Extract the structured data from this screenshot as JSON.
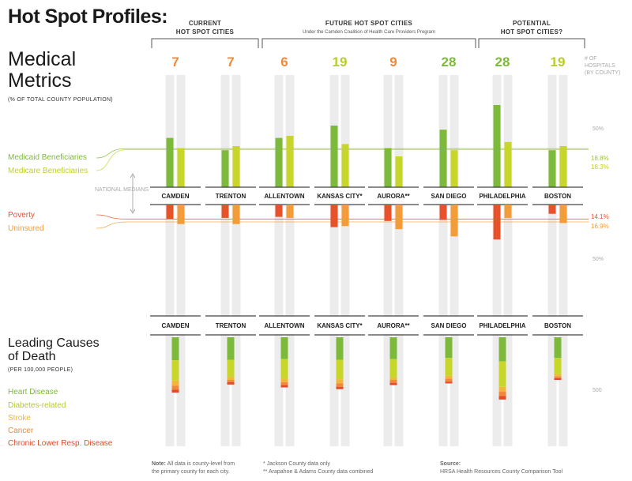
{
  "title": {
    "bold": "Hot Spot Profiles:",
    "line2": "Medical",
    "line3": "Metrics"
  },
  "subtitle": "(% OF TOTAL COUNTY POPULATION)",
  "groups": [
    {
      "label1": "CURRENT",
      "label2": "HOT SPOT CITIES",
      "sub": ""
    },
    {
      "label1": "FUTURE HOT SPOT CITIES",
      "label2": "",
      "sub": "Under the Camden Coalition of Health Care Providers Program"
    },
    {
      "label1": "POTENTIAL",
      "label2": "HOT SPOT CITIES?",
      "sub": ""
    }
  ],
  "hospitals_label": {
    "l1": "# OF",
    "l2": "HOSPITALS",
    "l3": "(BY COUNTY)"
  },
  "colors": {
    "medicaid": "#7dba3c",
    "medicare": "#c8d62a",
    "poverty": "#e8522b",
    "uninsured": "#f39c3a",
    "heart": "#7dba3c",
    "diabetes": "#c8d62a",
    "stroke": "#f2b63a",
    "cancer": "#f08a3a",
    "clrd": "#e24a2b",
    "track": "#ececec",
    "num_green": "#7dba3c",
    "num_lime": "#b8cc2a",
    "num_orange": "#f08a3a"
  },
  "legend_top": {
    "medicaid": "Medicaid Beneficiaries",
    "medicare": "Medicare Beneficiaries",
    "poverty": "Poverty",
    "uninsured": "Uninsured",
    "national_medians": "NATIONAL MEDIANS",
    "median_medicaid": "18.8%",
    "median_medicare": "18.3%",
    "median_poverty": "14.1%",
    "median_uninsured": "16.9%",
    "tick_50a": "50%",
    "tick_50b": "50%"
  },
  "deaths": {
    "title1": "Leading Causes",
    "title2": "of Death",
    "subtitle": "(PER 100,000 PEOPLE)",
    "legend": [
      "Heart Disease",
      "Diabetes-related",
      "Stroke",
      "Cancer",
      "Chronic Lower Resp. Disease"
    ],
    "tick_500": "500"
  },
  "footer": {
    "note_bold": "Note:",
    "note_rest": " All data is county-level from",
    "note_line2": "the primary county for each city.",
    "star1": "*     Jackson County data only",
    "star2": "**   Arapahoe & Adams County data combined",
    "source_bold": "Source:",
    "source_line2": "HRSA Health Resources County Comparison Tool"
  },
  "chart_data": {
    "type": "bar",
    "categories": [
      "CAMDEN",
      "TRENTON",
      "ALLENTOWN",
      "KANSAS CITY*",
      "AURORA**",
      "SAN DIEGO",
      "PHILADELPHIA",
      "BOSTON"
    ],
    "hospitals": [
      7,
      7,
      6,
      19,
      9,
      28,
      28,
      19
    ],
    "hospital_colors": [
      "orange",
      "orange",
      "orange",
      "lime",
      "orange",
      "green",
      "green",
      "lime"
    ],
    "ylim_top": [
      0,
      50
    ],
    "series_top": [
      {
        "name": "Medicaid Beneficiaries",
        "values": [
          24,
          18,
          24,
          30,
          19,
          28,
          40,
          18
        ]
      },
      {
        "name": "Medicare Beneficiaries",
        "values": [
          19,
          20,
          25,
          21,
          15,
          18,
          22,
          20
        ]
      }
    ],
    "series_bottom": [
      {
        "name": "Poverty",
        "values": [
          14,
          13,
          12,
          22,
          16,
          15,
          34,
          9
        ]
      },
      {
        "name": "Uninsured",
        "values": [
          19,
          19,
          13,
          21,
          24,
          31,
          13,
          18
        ]
      }
    ],
    "national_medians": {
      "Medicaid Beneficiaries": 18.8,
      "Medicare Beneficiaries": 18.3,
      "Poverty": 14.1,
      "Uninsured": 16.9
    },
    "ylim_deaths": [
      0,
      500
    ],
    "series_deaths": [
      {
        "name": "Heart Disease",
        "values": [
          200,
          195,
          190,
          195,
          190,
          180,
          210,
          180
        ]
      },
      {
        "name": "Diabetes-related",
        "values": [
          175,
          150,
          170,
          170,
          160,
          155,
          220,
          140
        ]
      },
      {
        "name": "Stroke",
        "values": [
          45,
          25,
          30,
          35,
          20,
          25,
          40,
          20
        ]
      },
      {
        "name": "Cancer",
        "values": [
          35,
          20,
          25,
          30,
          25,
          25,
          40,
          15
        ]
      },
      {
        "name": "Chronic Lower Resp. Disease",
        "values": [
          25,
          20,
          20,
          20,
          20,
          15,
          30,
          15
        ]
      }
    ]
  }
}
